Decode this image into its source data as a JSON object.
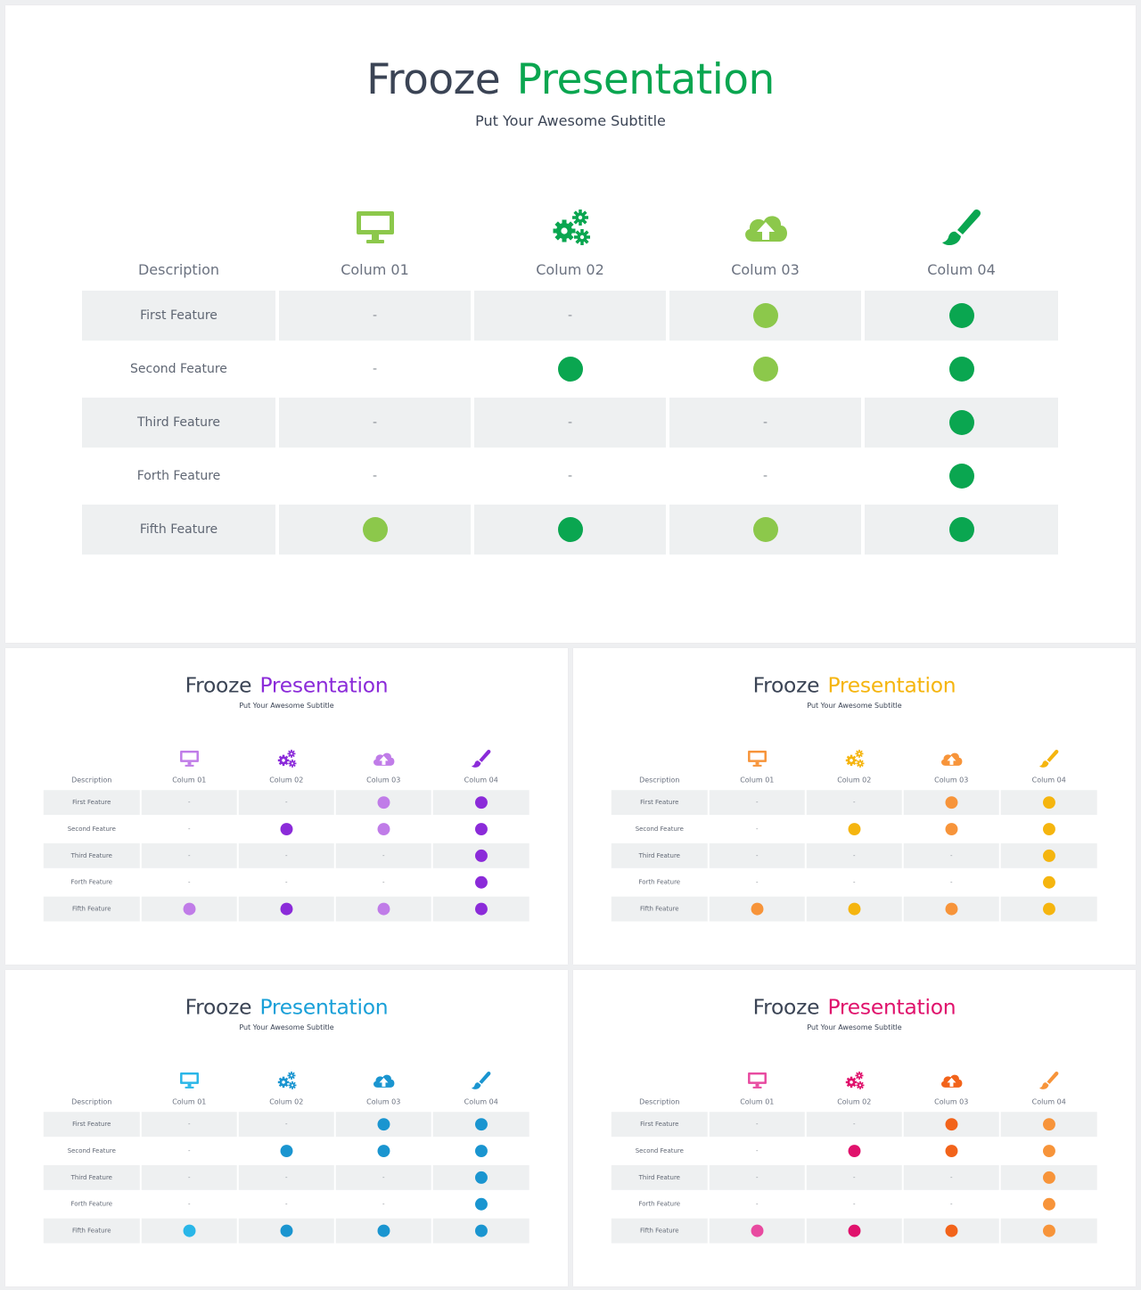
{
  "slides": [
    {
      "title_main": "Frooze",
      "title_accent": "Presentation",
      "subtitle": "Put Your Awesome Subtitle",
      "colors": {
        "accent": "#0aa650",
        "icons": [
          "#8cc84b",
          "#0aa650",
          "#8cc84b",
          "#0aa650"
        ],
        "dots": [
          "#8cc84b",
          "#0aa650",
          "#8cc84b",
          "#0aa650"
        ]
      }
    },
    {
      "title_main": "Frooze",
      "title_accent": "Presentation",
      "subtitle": "Put Your Awesome Subtitle",
      "colors": {
        "accent": "#8b2bd9",
        "icons": [
          "#c07ce8",
          "#8b2bd9",
          "#c07ce8",
          "#8b2bd9"
        ],
        "dots": [
          "#c07ce8",
          "#8b2bd9",
          "#c07ce8",
          "#8b2bd9"
        ]
      }
    },
    {
      "title_main": "Frooze",
      "title_accent": "Presentation",
      "subtitle": "Put Your Awesome Subtitle",
      "colors": {
        "accent": "#f5b50f",
        "icons": [
          "#f7943a",
          "#f5b50f",
          "#f7943a",
          "#f5b50f"
        ],
        "dots": [
          "#f7943a",
          "#f5b50f",
          "#f7943a",
          "#f5b50f"
        ]
      }
    },
    {
      "title_main": "Frooze",
      "title_accent": "Presentation",
      "subtitle": "Put Your Awesome Subtitle",
      "colors": {
        "accent": "#1aa0d8",
        "icons": [
          "#29b6e8",
          "#1a95d0",
          "#1a95d0",
          "#1a95d0"
        ],
        "dots": [
          "#29b6e8",
          "#1a95d0",
          "#1a95d0",
          "#1a95d0"
        ]
      }
    },
    {
      "title_main": "Frooze",
      "title_accent": "Presentation",
      "subtitle": "Put Your Awesome Subtitle",
      "colors": {
        "accent": "#e0126c",
        "icons": [
          "#e84aa0",
          "#e0126c",
          "#f2631a",
          "#f7943a"
        ],
        "dots": [
          "#e84aa0",
          "#e0126c",
          "#f2631a",
          "#f7943a"
        ]
      }
    }
  ],
  "table": {
    "description_header": "Description",
    "columns": [
      {
        "label": "Colum 01",
        "icon": "monitor-icon"
      },
      {
        "label": "Colum 02",
        "icon": "gears-icon"
      },
      {
        "label": "Colum 03",
        "icon": "cloud-upload-icon"
      },
      {
        "label": "Colum 04",
        "icon": "paintbrush-icon"
      }
    ],
    "rows": [
      {
        "label": "First Feature",
        "cells": [
          "-",
          "-",
          "dot",
          "dot"
        ]
      },
      {
        "label": "Second Feature",
        "cells": [
          "-",
          "dot",
          "dot",
          "dot"
        ]
      },
      {
        "label": "Third Feature",
        "cells": [
          "-",
          "-",
          "-",
          "dot"
        ]
      },
      {
        "label": "Forth Feature",
        "cells": [
          "-",
          "-",
          "-",
          "dot"
        ]
      },
      {
        "label": "Fifth Feature",
        "cells": [
          "dot",
          "dot",
          "dot",
          "dot"
        ]
      }
    ]
  }
}
